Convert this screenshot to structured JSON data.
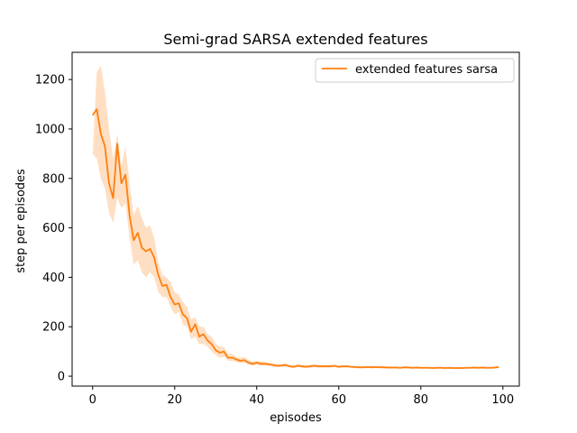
{
  "chart_data": {
    "type": "line",
    "title": "Semi-grad SARSA extended features",
    "xlabel": "episodes",
    "ylabel": "step per episodes",
    "xlim": [
      -5,
      104
    ],
    "ylim": [
      -40,
      1310
    ],
    "xticks": [
      0,
      20,
      40,
      60,
      80,
      100
    ],
    "yticks": [
      0,
      200,
      400,
      600,
      800,
      1000,
      1200
    ],
    "grid": false,
    "legend_position": "top-right",
    "series": [
      {
        "name": "extended features sarsa",
        "color": "#ff7f0e",
        "x": [
          0,
          1,
          2,
          3,
          4,
          5,
          6,
          7,
          8,
          9,
          10,
          11,
          12,
          13,
          14,
          15,
          16,
          17,
          18,
          19,
          20,
          21,
          22,
          23,
          24,
          25,
          26,
          27,
          28,
          29,
          30,
          31,
          32,
          33,
          34,
          35,
          36,
          37,
          38,
          39,
          40,
          41,
          42,
          43,
          44,
          45,
          46,
          47,
          48,
          49,
          50,
          51,
          52,
          53,
          54,
          55,
          56,
          57,
          58,
          59,
          60,
          61,
          62,
          63,
          64,
          65,
          66,
          67,
          68,
          69,
          70,
          71,
          72,
          73,
          74,
          75,
          76,
          77,
          78,
          79,
          80,
          81,
          82,
          83,
          84,
          85,
          86,
          87,
          88,
          89,
          90,
          91,
          92,
          93,
          94,
          95,
          96,
          97,
          98,
          99
        ],
        "values": [
          1055,
          1080,
          980,
          930,
          780,
          720,
          940,
          780,
          815,
          650,
          550,
          580,
          520,
          505,
          515,
          480,
          410,
          365,
          370,
          320,
          290,
          295,
          250,
          235,
          180,
          210,
          160,
          170,
          145,
          130,
          105,
          95,
          100,
          75,
          75,
          68,
          62,
          65,
          55,
          50,
          55,
          50,
          50,
          48,
          45,
          42,
          43,
          45,
          40,
          38,
          42,
          40,
          38,
          40,
          42,
          40,
          40,
          40,
          40,
          42,
          38,
          40,
          40,
          38,
          37,
          36,
          36,
          37,
          36,
          37,
          36,
          36,
          35,
          35,
          35,
          34,
          36,
          35,
          34,
          35,
          34,
          34,
          34,
          33,
          34,
          34,
          33,
          34,
          33,
          33,
          33,
          34,
          34,
          35,
          34,
          35,
          34,
          34,
          35,
          37
        ],
        "band_upper": [
          890,
          1230,
          1255,
          1150,
          1000,
          880,
          980,
          850,
          930,
          780,
          650,
          690,
          640,
          600,
          610,
          560,
          460,
          410,
          400,
          380,
          340,
          330,
          300,
          280,
          230,
          240,
          200,
          200,
          170,
          160,
          130,
          120,
          118,
          92,
          90,
          80,
          75,
          78,
          66,
          60,
          62,
          60,
          58,
          56,
          52,
          50,
          50,
          52,
          46,
          44,
          48,
          46,
          44,
          46,
          48,
          46,
          45,
          45,
          46,
          46,
          43,
          44,
          44,
          42,
          42,
          40,
          40,
          41,
          40,
          41,
          40,
          40,
          39,
          39,
          39,
          38,
          40,
          39,
          38,
          39,
          38,
          38,
          38,
          37,
          38,
          38,
          37,
          38,
          37,
          37,
          37,
          38,
          38,
          39,
          38,
          39,
          38,
          38,
          39,
          41
        ],
        "band_lower": [
          900,
          880,
          800,
          760,
          660,
          620,
          720,
          680,
          700,
          560,
          450,
          470,
          420,
          400,
          420,
          400,
          340,
          320,
          320,
          280,
          250,
          260,
          210,
          200,
          150,
          160,
          130,
          130,
          120,
          100,
          85,
          75,
          78,
          62,
          62,
          58,
          52,
          55,
          46,
          42,
          48,
          42,
          44,
          42,
          40,
          36,
          38,
          40,
          35,
          33,
          37,
          35,
          33,
          35,
          37,
          35,
          35,
          35,
          35,
          37,
          33,
          35,
          35,
          34,
          32,
          32,
          32,
          33,
          32,
          33,
          32,
          32,
          31,
          31,
          31,
          30,
          32,
          31,
          30,
          31,
          30,
          30,
          30,
          29,
          30,
          30,
          29,
          30,
          29,
          29,
          29,
          30,
          30,
          31,
          30,
          31,
          30,
          30,
          31,
          33
        ]
      }
    ]
  }
}
